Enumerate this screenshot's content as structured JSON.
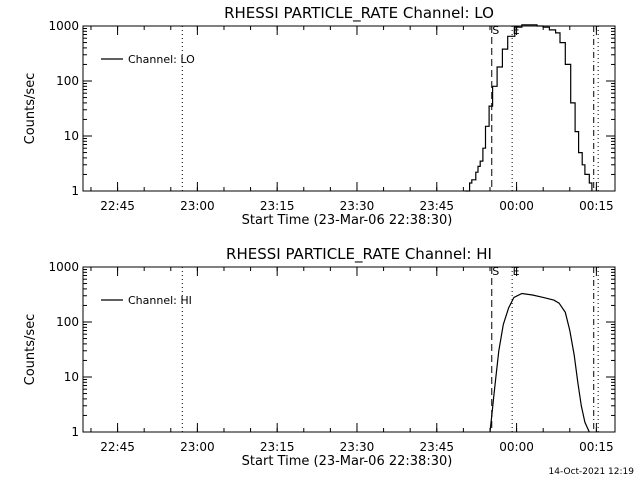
{
  "footer": {
    "timestamp": "14-Oct-2021 12:19"
  },
  "chart_data": [
    {
      "type": "line",
      "title": "RHESSI PARTICLE_RATE Channel: LO",
      "xlabel": "Start Time (23-Mar-06 22:38:30)",
      "ylabel": "Counts/sec",
      "y_scale": "log",
      "ylim": [
        1,
        1000
      ],
      "xlim": [
        "22:38:30",
        "00:18:30"
      ],
      "x_ticks": [
        "22:45",
        "23:00",
        "23:15",
        "23:30",
        "23:45",
        "00:00",
        "00:15"
      ],
      "y_ticks": [
        "1",
        "10",
        "100",
        "1000"
      ],
      "legend": {
        "entries": [
          "Channel: LO"
        ],
        "placement": "top-left"
      },
      "grid": false,
      "markers": [
        {
          "label": "S",
          "time": "23:55:20",
          "style": "dashed"
        },
        {
          "label": "E",
          "time": "23:59:10",
          "style": "dotted"
        }
      ],
      "extra_lines": [
        {
          "time": "22:57:10",
          "style": "dotted"
        },
        {
          "time": "00:14:30",
          "style": "dash-dot"
        },
        {
          "time": "00:15:20",
          "style": "dotted"
        }
      ],
      "series": [
        {
          "color": "#000000",
          "step": true,
          "x": [
            "23:50:15",
            "23:51:10",
            "23:51:35",
            "23:52:20",
            "23:52:45",
            "23:53:10",
            "23:53:40",
            "23:54:10",
            "23:54:50",
            "23:55:30",
            "23:56:20",
            "23:57:20",
            "23:58:20",
            "23:59:40",
            "00:01:00",
            "00:02:20",
            "00:03:50",
            "00:05:00",
            "00:06:10",
            "00:07:20",
            "00:08:10",
            "00:09:10",
            "00:10:10",
            "00:11:00",
            "00:11:40",
            "00:12:20",
            "00:12:50",
            "00:13:40",
            "00:14:10"
          ],
          "y": [
            1,
            1.4,
            1.6,
            2.2,
            2.8,
            3.5,
            6,
            15,
            35,
            80,
            180,
            380,
            650,
            950,
            1050,
            1050,
            1000,
            950,
            850,
            750,
            500,
            200,
            40,
            12,
            5,
            3,
            2,
            1.4,
            1
          ]
        }
      ]
    },
    {
      "type": "line",
      "title": "RHESSI PARTICLE_RATE Channel: HI",
      "xlabel": "Start Time (23-Mar-06 22:38:30)",
      "ylabel": "Counts/sec",
      "y_scale": "log",
      "ylim": [
        1,
        1000
      ],
      "xlim": [
        "22:38:30",
        "00:18:30"
      ],
      "x_ticks": [
        "22:45",
        "23:00",
        "23:15",
        "23:30",
        "23:45",
        "00:00",
        "00:15"
      ],
      "y_ticks": [
        "1",
        "10",
        "100",
        "1000"
      ],
      "legend": {
        "entries": [
          "Channel: HI"
        ],
        "placement": "top-left"
      },
      "grid": false,
      "markers": [
        {
          "label": "S",
          "time": "23:55:20",
          "style": "dashed"
        },
        {
          "label": "E",
          "time": "23:59:10",
          "style": "dotted"
        }
      ],
      "extra_lines": [
        {
          "time": "22:57:10",
          "style": "dotted"
        },
        {
          "time": "00:14:30",
          "style": "dash-dot"
        },
        {
          "time": "00:15:20",
          "style": "dotted"
        }
      ],
      "series": [
        {
          "color": "#000000",
          "step": false,
          "x": [
            "23:55:00",
            "23:55:20",
            "23:55:40",
            "23:56:00",
            "23:56:40",
            "23:57:30",
            "23:58:30",
            "23:59:30",
            "00:01:00",
            "00:03:00",
            "00:05:00",
            "00:07:00",
            "00:08:00",
            "00:09:10",
            "00:10:00",
            "00:10:50",
            "00:11:30",
            "00:12:10",
            "00:12:50",
            "00:13:40"
          ],
          "y": [
            1,
            2,
            4,
            8,
            30,
            90,
            180,
            280,
            330,
            310,
            280,
            250,
            220,
            150,
            70,
            25,
            8,
            3,
            1.5,
            1
          ]
        }
      ]
    }
  ]
}
